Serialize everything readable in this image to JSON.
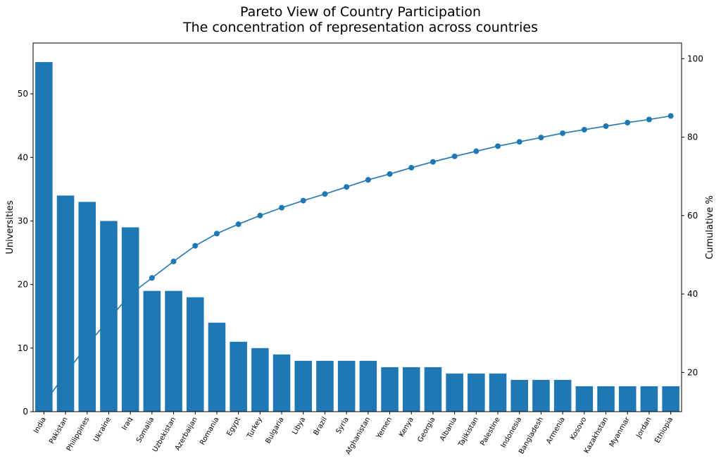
{
  "chart_data": {
    "type": "bar",
    "title": "Pareto View of Country Participation",
    "subtitle": "The concentration of representation across countries",
    "ylabel": "Universities",
    "y2label": "Cumulative %",
    "categories": [
      "India",
      "Pakistan",
      "Philippines",
      "Ukraine",
      "Iraq",
      "Somalia",
      "Uzbekistan",
      "Azerbaijan",
      "Romania",
      "Egypt",
      "Turkey",
      "Bulgaria",
      "Libya",
      "Brazil",
      "Syria",
      "Afghanistan",
      "Yemen",
      "Kenya",
      "Georgia",
      "Albania",
      "Tajikistan",
      "Palestine",
      "Indonesia",
      "Bangladesh",
      "Armenia",
      "Kosovo",
      "Kazakhstan",
      "Myanmar",
      "Jordan",
      "Ethiopia"
    ],
    "series": [
      {
        "type": "bar",
        "values": [
          55,
          34,
          33,
          30,
          29,
          19,
          19,
          18,
          14,
          11,
          10,
          9,
          8,
          8,
          8,
          8,
          7,
          7,
          7,
          6,
          6,
          6,
          5,
          5,
          5,
          4,
          4,
          4,
          4,
          4
        ],
        "color": "#1f77b4"
      },
      {
        "type": "line",
        "axis": "right",
        "values": [
          12.1,
          19.6,
          26.9,
          33.5,
          39.9,
          44.1,
          48.3,
          52.3,
          55.4,
          57.8,
          60.0,
          62.0,
          63.8,
          65.5,
          67.3,
          69.1,
          70.6,
          72.2,
          73.7,
          75.1,
          76.4,
          77.7,
          78.8,
          79.9,
          81.0,
          81.9,
          82.8,
          83.7,
          84.5,
          85.4
        ],
        "color": "#1f77b4"
      }
    ],
    "ylim": [
      0,
      58
    ],
    "yticks": [
      0,
      10,
      20,
      30,
      40,
      50
    ],
    "y2lim": [
      10,
      104
    ],
    "y2ticks": [
      20,
      40,
      60,
      80,
      100
    ],
    "grid": false,
    "legend": "none"
  }
}
